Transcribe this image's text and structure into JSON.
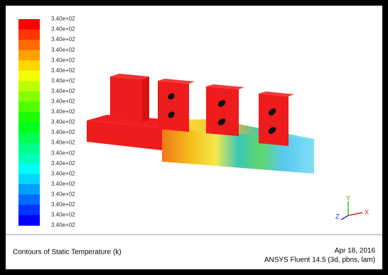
{
  "colorbar": {
    "labels": [
      "3.40e+02",
      "3.40e+02",
      "3.40e+02",
      "3.40e+02",
      "3.40e+02",
      "3.40e+02",
      "3.40e+02",
      "3.40e+02",
      "3.40e+02",
      "3.40e+02",
      "3.40e+02",
      "3.40e+02",
      "3.40e+02",
      "3.40e+02",
      "3.40e+02",
      "3.40e+02",
      "3.40e+02",
      "3.40e+02",
      "3.40e+02",
      "3.40e+02",
      "3.40e+02"
    ]
  },
  "triad": {
    "y": "Y",
    "z": "Z",
    "x": "X"
  },
  "footer": {
    "title": "Contours of Static Temperature (k)",
    "date": "Apr 18, 2016",
    "version": "ANSYS Fluent 14.5 (3d, pbns, lam)"
  }
}
